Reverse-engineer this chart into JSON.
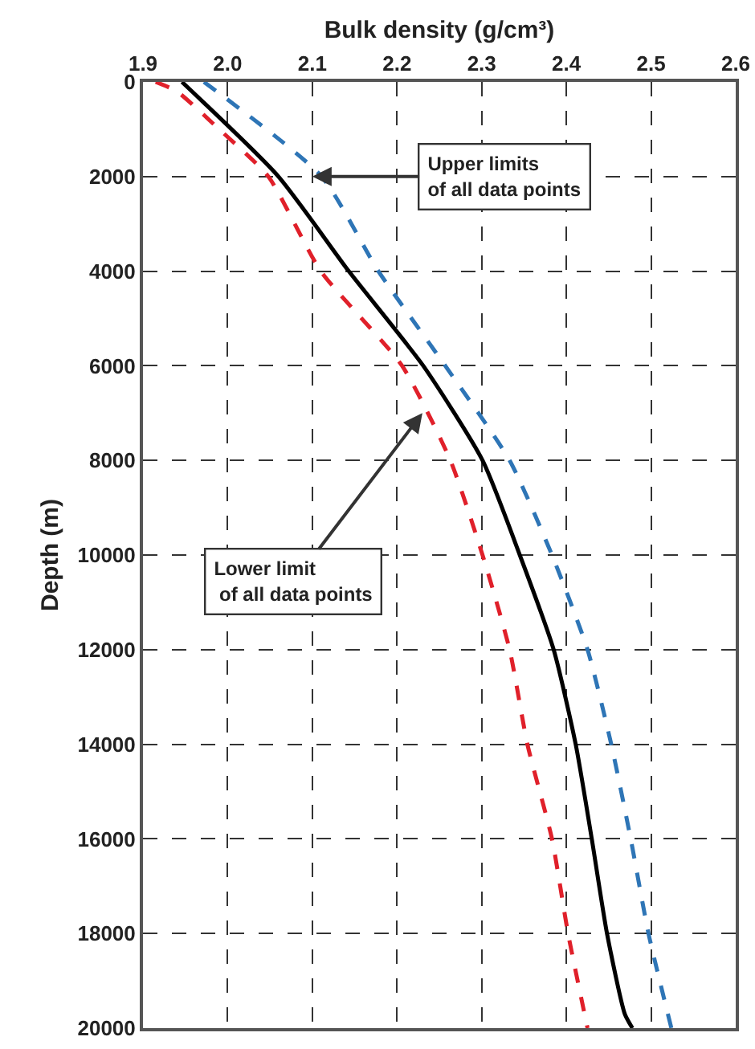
{
  "chart_data": {
    "type": "line",
    "xlabel": "Bulk density (g/cm³)",
    "ylabel": "Depth (m)",
    "xlim": [
      1.9,
      2.6
    ],
    "xticks": [
      {
        "value": 1.9,
        "label": "1.9"
      },
      {
        "value": 2.0,
        "label": "2.0"
      },
      {
        "value": 2.1,
        "label": "2.1"
      },
      {
        "value": 2.2,
        "label": "2.2"
      },
      {
        "value": 2.3,
        "label": "2.3"
      },
      {
        "value": 2.4,
        "label": "2.4"
      },
      {
        "value": 2.5,
        "label": "2.5"
      },
      {
        "value": 2.6,
        "label": "2.6"
      }
    ],
    "ylim": [
      20000,
      0
    ],
    "yticks": [
      0,
      2000,
      4000,
      6000,
      8000,
      10000,
      12000,
      14000,
      16000,
      18000,
      20000
    ],
    "grid": true,
    "marker": "none",
    "series": [
      {
        "color": "#000000",
        "line_style": "solid",
        "x": [
          1.946,
          2.06,
          2.143,
          2.231,
          2.301,
          2.345,
          2.385,
          2.411,
          2.43,
          2.448,
          2.469,
          2.478
        ],
        "values": [
          0,
          2000,
          4000,
          6000,
          8000,
          10000,
          12000,
          14000,
          16000,
          18000,
          19700,
          20000
        ]
      },
      {
        "color": "#2e75b6",
        "line_style": "dashed",
        "x": [
          1.972,
          2.111,
          2.178,
          2.257,
          2.333,
          2.383,
          2.425,
          2.453,
          2.476,
          2.497,
          2.524
        ],
        "values": [
          0,
          2000,
          4000,
          6000,
          8000,
          10000,
          12000,
          14000,
          16000,
          18000,
          20000
        ]
      },
      {
        "color": "#e0202a",
        "line_style": "dashed",
        "x": [
          1.915,
          1.94,
          1.99,
          2.048,
          2.11,
          2.206,
          2.263,
          2.301,
          2.333,
          2.354,
          2.383,
          2.402,
          2.425
        ],
        "values": [
          0,
          200,
          1000,
          2000,
          4000,
          6000,
          8000,
          10000,
          12000,
          14000,
          16000,
          18000,
          20000
        ]
      }
    ],
    "annotations": [
      {
        "text": "Upper limits\nof all data points",
        "x": 2.1,
        "y": 2000
      },
      {
        "text": "Lower limit\n of all data points",
        "x": 2.23,
        "y": 7000
      }
    ]
  }
}
